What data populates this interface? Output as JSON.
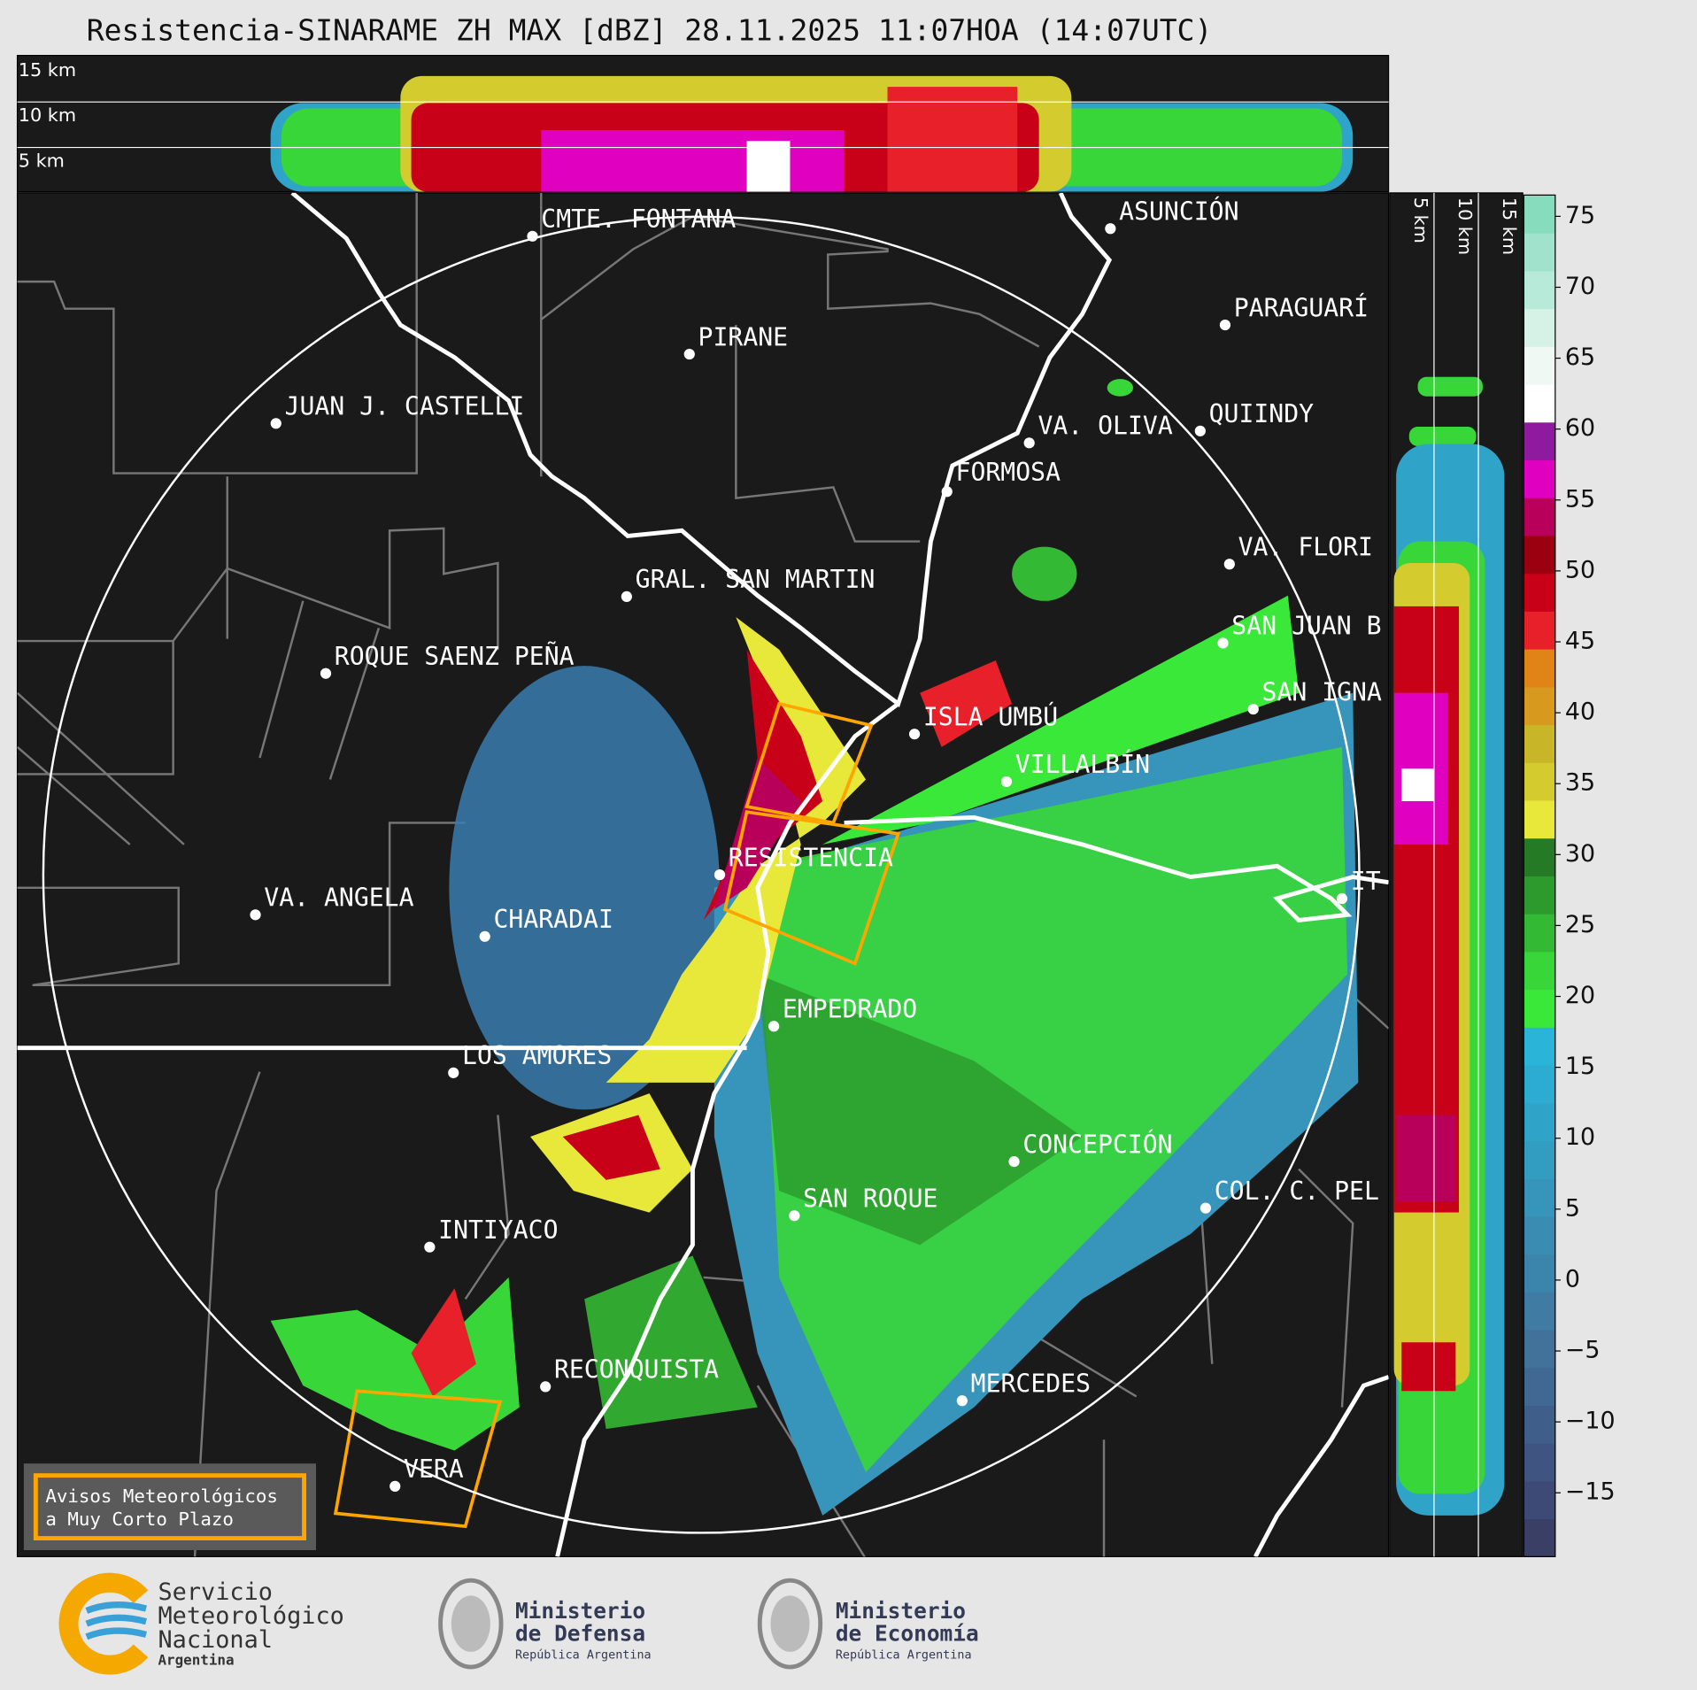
{
  "title": "Resistencia-SINARAME ZH MAX [dBZ] 28.11.2025 11:07HOA (14:07UTC)",
  "cross_section_top": {
    "labels": [
      "15 km",
      "10 km",
      "5 km"
    ]
  },
  "cross_section_right": {
    "labels": [
      "5 km",
      "10 km",
      "15 km"
    ]
  },
  "cities": [
    "CMTE. FONTANA",
    "PIRANE",
    "JUAN J. CASTELLI",
    "ASUNCIÓN",
    "PARAGUARÍ",
    "QUIINDY",
    "VA. OLIVA",
    "FORMOSA",
    "VA. FLORI",
    "GRAL. SAN MARTIN",
    "SAN JUAN B",
    "ROQUE SAENZ PEÑA",
    "SAN IGNA",
    "ISLA UMBÚ",
    "VILLALBÍN",
    "RESISTENCIA",
    "VA. ANGELA",
    "CHARADAI",
    "IT",
    "EMPEDRADO",
    "LOS AMORES",
    "CONCEPCIÓN",
    "COL. C. PEL",
    "SAN ROQUE",
    "INTIYACO",
    "RECONQUISTA",
    "MERCEDES",
    "VERA"
  ],
  "colorbar": {
    "lim": [
      -19.5,
      76.5
    ],
    "ticks": [
      75,
      70,
      65,
      60,
      55,
      50,
      45,
      40,
      35,
      30,
      25,
      20,
      15,
      10,
      5,
      0,
      {
        "value": -5,
        "label": "−5"
      },
      {
        "value": -10,
        "label": "−10"
      },
      {
        "value": -15,
        "label": "−15"
      }
    ],
    "colors": [
      "#3a3f66",
      "#3d4a75",
      "#3f5480",
      "#405e8a",
      "#416892",
      "#42729a",
      "#3f7ba3",
      "#3b84ab",
      "#3a8cb2",
      "#3794ba",
      "#339cc1",
      "#2fa4c8",
      "#2cacd0",
      "#29b4d8",
      "#3ae83a",
      "#39d639",
      "#34b934",
      "#2c9a2c",
      "#257a25",
      "#e8e83a",
      "#d4cc2e",
      "#c8b628",
      "#d89a1e",
      "#e08418",
      "#e8202a",
      "#c80018",
      "#9a0010",
      "#b8005a",
      "#e000c0",
      "#8e1a9e",
      "#ffffff",
      "#f0f8f4",
      "#d6f2e6",
      "#b8eada",
      "#a0e2cc",
      "#88dcbe"
    ]
  },
  "warning": {
    "lines": [
      "Avisos Meteorológicos",
      "a Muy Corto Plazo"
    ]
  },
  "footer": {
    "smn": {
      "lines": [
        "Servicio",
        "Meteorológico",
        "Nacional"
      ],
      "country": "Argentina"
    },
    "defensa": {
      "lines": [
        "Ministerio",
        "de Defensa"
      ],
      "country": "República Argentina"
    },
    "economia": {
      "lines": [
        "Ministerio",
        "de Economía"
      ],
      "country": "República Argentina"
    }
  }
}
